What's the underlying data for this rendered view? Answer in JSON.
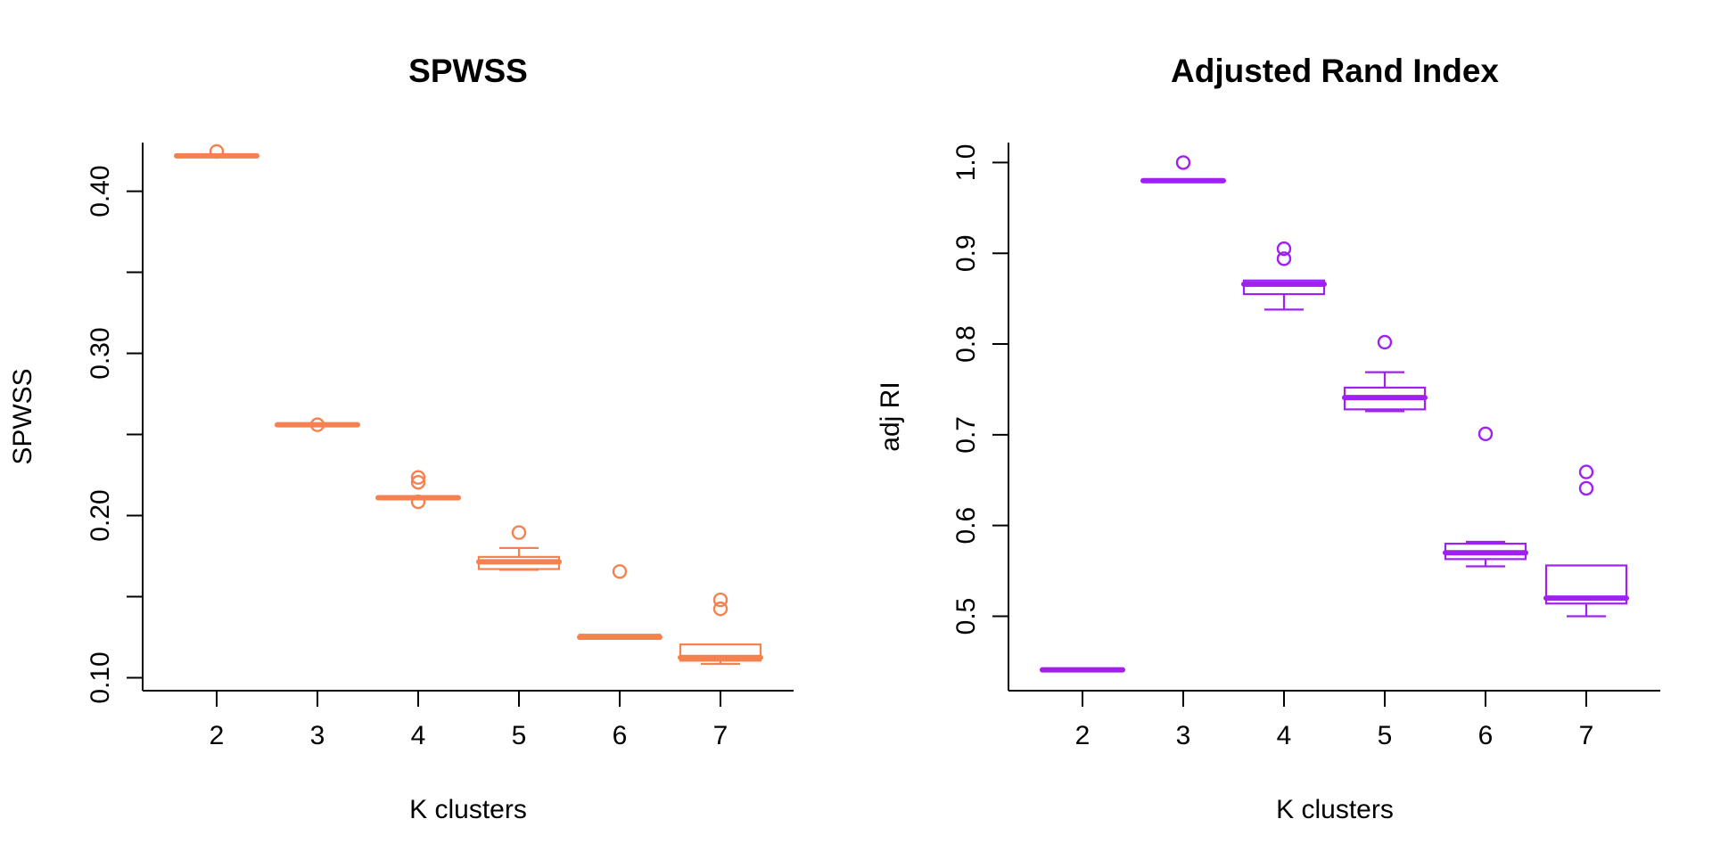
{
  "chart_data": [
    {
      "type": "box",
      "title": "SPWSS",
      "xlabel": "K clusters",
      "ylabel": "SPWSS",
      "color": "#F4814F",
      "categories": [
        "2",
        "3",
        "4",
        "5",
        "6",
        "7"
      ],
      "yticks": [
        0.1,
        0.15,
        0.2,
        0.25,
        0.3,
        0.35,
        0.4
      ],
      "ytick_labels": [
        "0.10",
        "",
        "0.20",
        "",
        "0.30",
        "",
        "0.40"
      ],
      "ylim": [
        0.092,
        0.43
      ],
      "boxes": [
        {
          "k": "2",
          "min": 0.4215,
          "q1": 0.4215,
          "median": 0.4218,
          "q3": 0.4222,
          "max": 0.4222,
          "outliers": [
            0.4245
          ]
        },
        {
          "k": "3",
          "min": 0.2555,
          "q1": 0.2555,
          "median": 0.256,
          "q3": 0.2565,
          "max": 0.2565,
          "outliers": [
            0.256
          ]
        },
        {
          "k": "4",
          "min": 0.2105,
          "q1": 0.2105,
          "median": 0.211,
          "q3": 0.2115,
          "max": 0.2115,
          "outliers": [
            0.2235,
            0.2205,
            0.2085
          ]
        },
        {
          "k": "5",
          "min": 0.1665,
          "q1": 0.167,
          "median": 0.1715,
          "q3": 0.1745,
          "max": 0.18,
          "outliers": [
            0.1895
          ]
        },
        {
          "k": "6",
          "min": 0.124,
          "q1": 0.124,
          "median": 0.125,
          "q3": 0.1265,
          "max": 0.1265,
          "outliers": [
            0.1655
          ]
        },
        {
          "k": "7",
          "min": 0.1085,
          "q1": 0.1105,
          "median": 0.1125,
          "q3": 0.1205,
          "max": 0.1205,
          "outliers": [
            0.148,
            0.1425
          ]
        }
      ]
    },
    {
      "type": "box",
      "title": "Adjusted Rand Index",
      "xlabel": "K clusters",
      "ylabel": "adj RI",
      "color": "#A020F0",
      "categories": [
        "2",
        "3",
        "4",
        "5",
        "6",
        "7"
      ],
      "yticks": [
        0.5,
        0.6,
        0.7,
        0.8,
        0.9,
        1.0
      ],
      "ytick_labels": [
        "0.5",
        "0.6",
        "0.7",
        "0.8",
        "0.9",
        "1.0"
      ],
      "ylim": [
        0.418,
        1.022
      ],
      "boxes": [
        {
          "k": "2",
          "min": 0.44,
          "q1": 0.44,
          "median": 0.441,
          "q3": 0.442,
          "max": 0.442,
          "outliers": []
        },
        {
          "k": "3",
          "min": 0.979,
          "q1": 0.979,
          "median": 0.98,
          "q3": 0.981,
          "max": 0.981,
          "outliers": [
            1.0
          ]
        },
        {
          "k": "4",
          "min": 0.838,
          "q1": 0.855,
          "median": 0.866,
          "q3": 0.87,
          "max": 0.87,
          "outliers": [
            0.905,
            0.894
          ]
        },
        {
          "k": "5",
          "min": 0.726,
          "q1": 0.728,
          "median": 0.741,
          "q3": 0.752,
          "max": 0.769,
          "outliers": [
            0.802
          ]
        },
        {
          "k": "6",
          "min": 0.555,
          "q1": 0.563,
          "median": 0.57,
          "q3": 0.58,
          "max": 0.582,
          "outliers": [
            0.701
          ]
        },
        {
          "k": "7",
          "min": 0.5,
          "q1": 0.514,
          "median": 0.52,
          "q3": 0.556,
          "max": 0.556,
          "outliers": [
            0.659,
            0.641
          ]
        }
      ]
    }
  ]
}
